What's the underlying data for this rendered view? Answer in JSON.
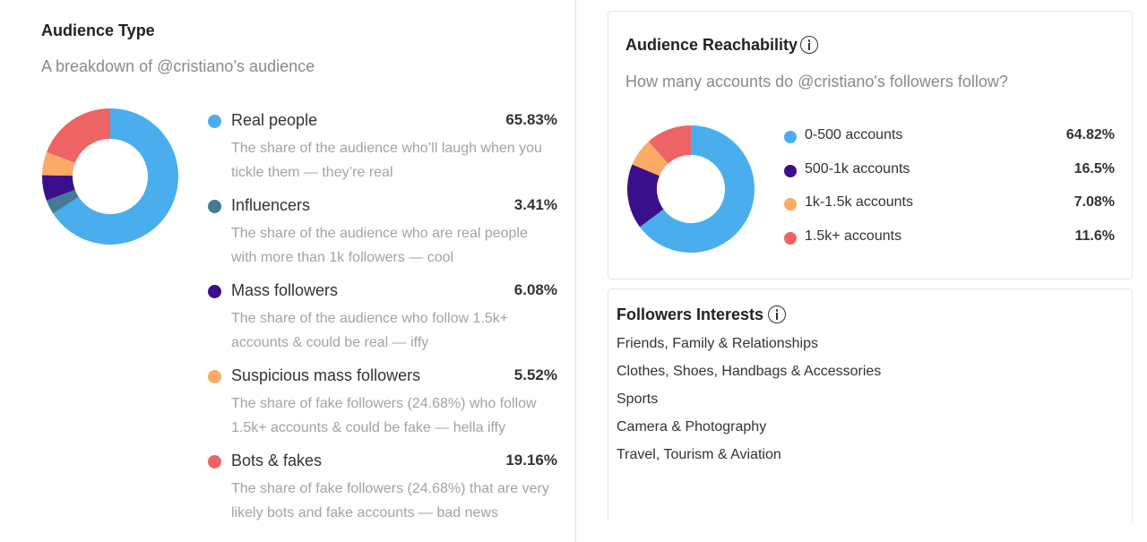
{
  "audience_type": {
    "title": "Audience Type",
    "subtitle": "A breakdown of @cristiano’s audience",
    "items": [
      {
        "label": "Real people",
        "percent": "65.83%",
        "value": 65.83,
        "color": "#4aaeee",
        "description": "The share of the audience who’ll laugh when you tickle them — they’re real"
      },
      {
        "label": "Influencers",
        "percent": "3.41%",
        "value": 3.41,
        "color": "#457a96",
        "description": "The share of the audience who are real people with more than 1k followers — cool"
      },
      {
        "label": "Mass followers",
        "percent": "6.08%",
        "value": 6.08,
        "color": "#3b0f8c",
        "description": "The share of the audience who follow 1.5k+ accounts & could be real — iffy"
      },
      {
        "label": "Suspicious mass followers",
        "percent": "5.52%",
        "value": 5.52,
        "color": "#fbab64",
        "description": "The share of fake followers (24.68%) who follow 1.5k+ accounts & could be fake — hella iffy"
      },
      {
        "label": "Bots & fakes",
        "percent": "19.16%",
        "value": 19.16,
        "color": "#ee6464",
        "description": "The share of fake followers (24.68%) that are very likely bots and fake accounts — bad news"
      }
    ]
  },
  "reachability": {
    "title": "Audience Reachability",
    "subtitle": "How many accounts do @cristiano's followers follow?",
    "info_icon": "info-icon",
    "items": [
      {
        "label": "0-500 accounts",
        "percent": "64.82%",
        "value": 64.82,
        "color": "#4aaeee"
      },
      {
        "label": "500-1k accounts",
        "percent": "16.5%",
        "value": 16.5,
        "color": "#3b0f8c"
      },
      {
        "label": "1k-1.5k accounts",
        "percent": "7.08%",
        "value": 7.08,
        "color": "#fbab64"
      },
      {
        "label": "1.5k+ accounts",
        "percent": "11.6%",
        "value": 11.6,
        "color": "#ee6464"
      }
    ]
  },
  "interests": {
    "title": "Followers Interests",
    "info_icon": "info-icon",
    "items": [
      "Friends, Family & Relationships",
      "Clothes, Shoes, Handbags & Accessories",
      "Sports",
      "Camera & Photography",
      "Travel, Tourism & Aviation"
    ]
  }
}
